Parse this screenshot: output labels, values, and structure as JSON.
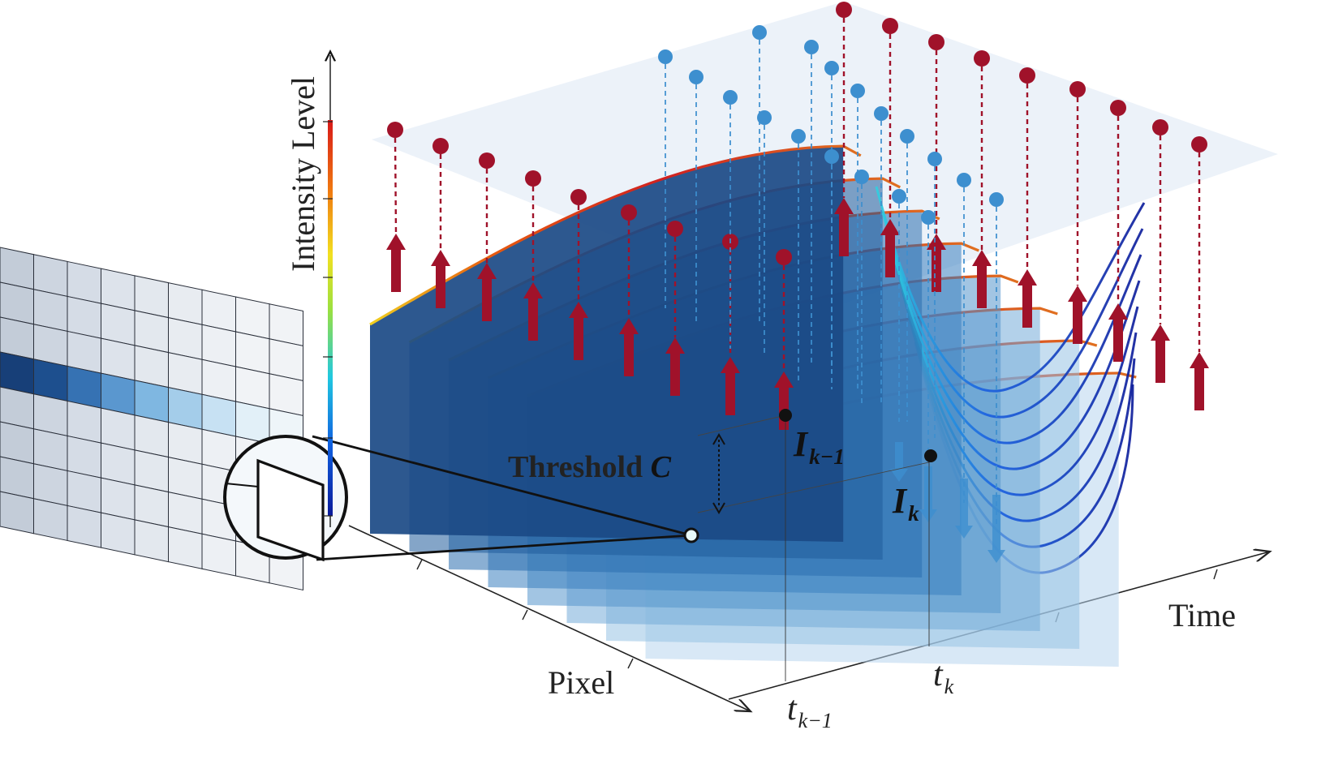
{
  "figure": {
    "axis_labels": {
      "intensity": "Intensity Level",
      "pixel": "Pixel",
      "time": "Time"
    },
    "threshold": {
      "text": "Threshold ",
      "symbol": "C"
    },
    "intensity_points": {
      "prev": {
        "base": "I",
        "subscript": "k−1"
      },
      "curr": {
        "base": "I",
        "subscript": "k"
      }
    },
    "time_ticks": {
      "prev": {
        "base": "t",
        "subscript": "k−1"
      },
      "curr": {
        "base": "t",
        "subscript": "k"
      }
    },
    "colors": {
      "positive_event": "#a0122a",
      "negative_event": "#3d8fcf",
      "panel_dark": "#1e4f8a",
      "colorbar": [
        "#0a1a9a",
        "#1060e0",
        "#20c8e0",
        "#9ae040",
        "#f2e020",
        "#f07a10",
        "#d81818"
      ]
    },
    "pixel_grid": {
      "rows": 8,
      "cols": 9,
      "highlight_row": 3
    },
    "slice_count": 8
  }
}
